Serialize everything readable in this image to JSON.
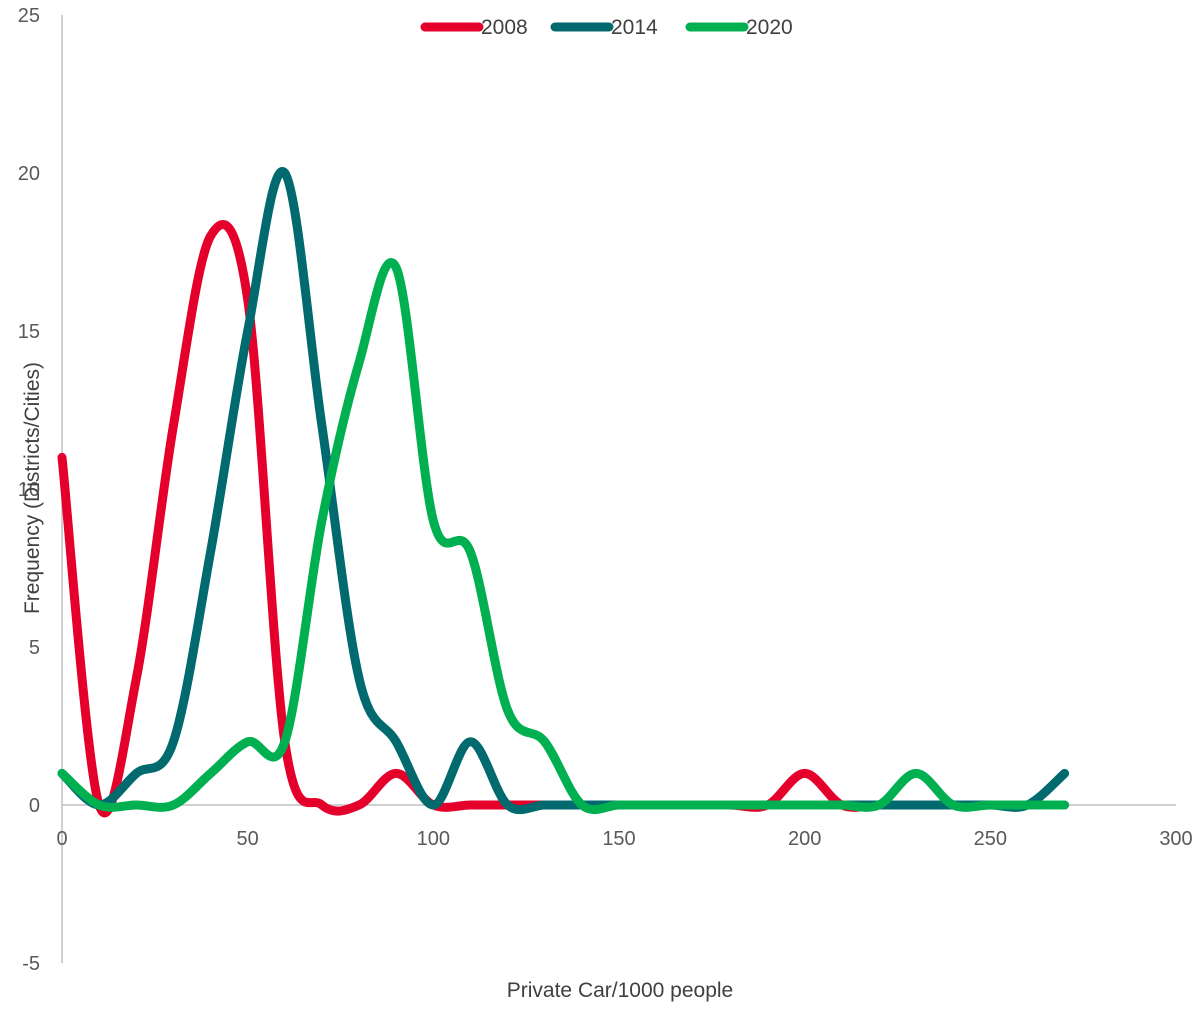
{
  "chart_data": {
    "type": "line",
    "xlabel": "Private Car/1000 people",
    "ylabel": "Frequency (Districts/Cities)",
    "xlim": [
      0,
      300
    ],
    "ylim": [
      -5,
      25
    ],
    "x_ticks": [
      "0",
      "50",
      "100",
      "150",
      "200",
      "250",
      "300"
    ],
    "y_ticks": [
      "-5",
      "0",
      "5",
      "10",
      "15",
      "20",
      "25"
    ],
    "x_tick_values": [
      0,
      50,
      100,
      150,
      200,
      250,
      300
    ],
    "y_tick_values": [
      -5,
      0,
      5,
      10,
      15,
      20,
      25
    ],
    "grid": false,
    "legend_position": "top",
    "smooth": true,
    "series": [
      {
        "name": "2008",
        "color": "#E4002B",
        "x": [
          0,
          10,
          20,
          30,
          40,
          50,
          60,
          70,
          80,
          90,
          100,
          110,
          120,
          130,
          140,
          150,
          160,
          170,
          180,
          190,
          200,
          210,
          220,
          230,
          240,
          250,
          260,
          270
        ],
        "y": [
          11,
          0,
          4,
          12,
          18,
          16,
          2,
          0,
          0,
          1,
          0,
          0,
          0,
          0,
          0,
          0,
          0,
          0,
          0,
          0,
          1,
          0,
          0,
          0,
          0,
          0,
          0,
          0
        ]
      },
      {
        "name": "2014",
        "color": "#006A6E",
        "x": [
          0,
          10,
          20,
          30,
          40,
          50,
          60,
          70,
          80,
          90,
          100,
          110,
          120,
          130,
          140,
          150,
          160,
          170,
          180,
          190,
          200,
          210,
          220,
          230,
          240,
          250,
          260,
          270
        ],
        "y": [
          1,
          0,
          1,
          2,
          8,
          15,
          20,
          12,
          4,
          2,
          0,
          2,
          0,
          0,
          0,
          0,
          0,
          0,
          0,
          0,
          0,
          0,
          0,
          0,
          0,
          0,
          0,
          1
        ]
      },
      {
        "name": "2020",
        "color": "#00B050",
        "x": [
          0,
          10,
          20,
          30,
          40,
          50,
          60,
          70,
          80,
          90,
          100,
          110,
          120,
          130,
          140,
          150,
          160,
          170,
          180,
          190,
          200,
          210,
          220,
          230,
          240,
          250,
          260,
          270
        ],
        "y": [
          1,
          0,
          0,
          0,
          1,
          2,
          2,
          9,
          14,
          17,
          9,
          8,
          3,
          2,
          0,
          0,
          0,
          0,
          0,
          0,
          0,
          0,
          0,
          1,
          0,
          0,
          0,
          0
        ]
      }
    ]
  }
}
